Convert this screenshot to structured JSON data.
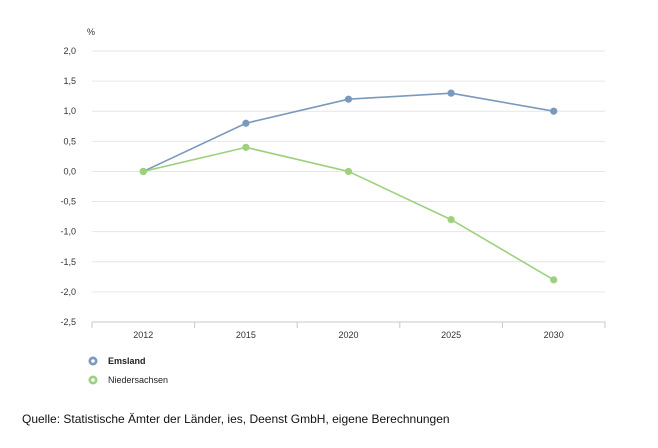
{
  "chart_data": {
    "type": "line",
    "title": "",
    "xlabel": "",
    "ylabel": "%",
    "x": [
      "2012",
      "2015",
      "2020",
      "2025",
      "2030"
    ],
    "ylim": [
      -2.5,
      2.0
    ],
    "yticks": [
      "2,0",
      "1,5",
      "1,0",
      "0,5",
      "0,0",
      "-0,5",
      "-1,0",
      "-1,5",
      "-2,0",
      "-2,5"
    ],
    "ytick_values": [
      2.0,
      1.5,
      1.0,
      0.5,
      0.0,
      -0.5,
      -1.0,
      -1.5,
      -2.0,
      -2.5
    ],
    "grid": true,
    "legend_position": "bottom-left",
    "series": [
      {
        "name": "Emsland",
        "color": "#7b98bd",
        "values": [
          0.0,
          0.8,
          1.2,
          1.3,
          1.0
        ]
      },
      {
        "name": "Niedersachsen",
        "color": "#9dd17e",
        "values": [
          0.0,
          0.4,
          0.0,
          -0.8,
          -1.8
        ]
      }
    ]
  },
  "source_note": "Quelle: Statistische Ämter der Länder, ies, Deenst GmbH, eigene Berechnungen"
}
